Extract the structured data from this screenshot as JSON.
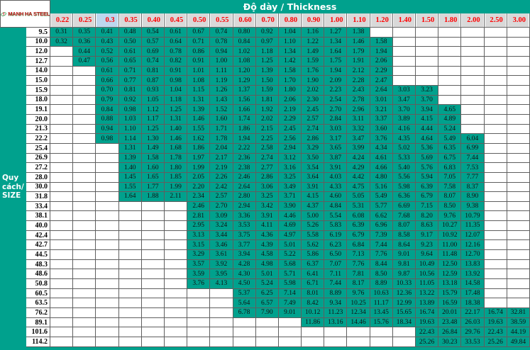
{
  "logo": {
    "text": "MANH HA STEEL"
  },
  "title": "Độ dày / Thickness",
  "size_label": "Quy cách/ SIZE",
  "thickness_headers": [
    "0.22",
    "0.25",
    "0.3",
    "0.35",
    "0.40",
    "0.45",
    "0.50",
    "0.55",
    "0.60",
    "0.70",
    "0.80",
    "0.90",
    "1.00",
    "1.10",
    "1.20",
    "1.40",
    "1.50",
    "1.80",
    "2.00",
    "2.50",
    "3.00"
  ],
  "highlight_header_index": 2,
  "colors": {
    "accent_teal": "#00a18d",
    "header_cell_bg": "#d9d9d9",
    "header_highlight_bg": "#bdd7ee",
    "header_text_red": "#ff0000",
    "logo_green": "#2e9a47",
    "logo_red": "#d3202a"
  },
  "rows": [
    {
      "size": "9.5",
      "values": [
        "0.31",
        "0.35",
        "0.41",
        "0.48",
        "0.54",
        "0.61",
        "0.67",
        "0.74",
        "0.80",
        "0.92",
        "1.04",
        "1.16",
        "1.27",
        "1.38",
        "",
        "",
        "",
        "",
        "",
        "",
        ""
      ]
    },
    {
      "size": "10.0",
      "values": [
        "0.32",
        "0.36",
        "0.43",
        "0.50",
        "0.57",
        "0.64",
        "0.71",
        "0.78",
        "0.84",
        "0.97",
        "1.10",
        "1.22",
        "1.34",
        "1.46",
        "1.58",
        "",
        "",
        "",
        "",
        "",
        ""
      ]
    },
    {
      "size": "12.0",
      "values": [
        "",
        "0.44",
        "0.52",
        "0.61",
        "0.69",
        "0.78",
        "0.86",
        "0.94",
        "1.02",
        "1.18",
        "1.34",
        "1.49",
        "1.64",
        "1.79",
        "1.94",
        "",
        "",
        "",
        "",
        "",
        ""
      ]
    },
    {
      "size": "12.7",
      "values": [
        "",
        "0.47",
        "0.56",
        "0.65",
        "0.74",
        "0.82",
        "0.91",
        "1.00",
        "1.08",
        "1.25",
        "1.42",
        "1.59",
        "1.75",
        "1.91",
        "2.06",
        "",
        "",
        "",
        "",
        "",
        ""
      ]
    },
    {
      "size": "14.0",
      "values": [
        "",
        "",
        "0.61",
        "0.71",
        "0.81",
        "0.91",
        "1.01",
        "1.11",
        "1.20",
        "1.39",
        "1.58",
        "1.76",
        "1.94",
        "2.12",
        "2.29",
        "",
        "",
        "",
        "",
        "",
        ""
      ]
    },
    {
      "size": "15.0",
      "values": [
        "",
        "",
        "0.66",
        "0.77",
        "0.87",
        "0.98",
        "1.08",
        "1.19",
        "1.29",
        "1.50",
        "1.70",
        "1.90",
        "2.09",
        "2.28",
        "2.47",
        "",
        "",
        "",
        "",
        "",
        ""
      ]
    },
    {
      "size": "15.9",
      "values": [
        "",
        "",
        "0.70",
        "0.81",
        "0.93",
        "1.04",
        "1.15",
        "1.26",
        "1.37",
        "1.59",
        "1.80",
        "2.02",
        "2.23",
        "2.43",
        "2.64",
        "3.03",
        "3.23",
        "",
        "",
        "",
        ""
      ]
    },
    {
      "size": "18.0",
      "values": [
        "",
        "",
        "0.79",
        "0.92",
        "1.05",
        "1.18",
        "1.31",
        "1.43",
        "1.56",
        "1.81",
        "2.06",
        "2.30",
        "2.54",
        "2.78",
        "3.01",
        "3.47",
        "3.70",
        "",
        "",
        "",
        ""
      ]
    },
    {
      "size": "19.1",
      "values": [
        "",
        "",
        "0.84",
        "0.98",
        "1.12",
        "1.25",
        "1.39",
        "1.52",
        "1.66",
        "1.92",
        "2.19",
        "2.45",
        "2.70",
        "2.96",
        "3.21",
        "3.70",
        "3.94",
        "4.65",
        "",
        "",
        ""
      ]
    },
    {
      "size": "20.0",
      "values": [
        "",
        "",
        "0.88",
        "1.03",
        "1.17",
        "1.31",
        "1.46",
        "1.60",
        "1.74",
        "2.02",
        "2.29",
        "2.57",
        "2.84",
        "3.11",
        "3.37",
        "3.89",
        "4.15",
        "4.89",
        "",
        "",
        ""
      ]
    },
    {
      "size": "21.3",
      "values": [
        "",
        "",
        "0.94",
        "1.10",
        "1.25",
        "1.40",
        "1.55",
        "1.71",
        "1.86",
        "2.15",
        "2.45",
        "2.74",
        "3.03",
        "3.32",
        "3.60",
        "4.16",
        "4.44",
        "5.24",
        "",
        "",
        ""
      ]
    },
    {
      "size": "22.2",
      "values": [
        "",
        "",
        "0.98",
        "1.14",
        "1.30",
        "1.46",
        "1.62",
        "1.78",
        "1.94",
        "2.25",
        "2.56",
        "2.86",
        "3.17",
        "3.47",
        "3.76",
        "4.35",
        "4.64",
        "5.49",
        "6.04",
        "",
        ""
      ]
    },
    {
      "size": "25.4",
      "values": [
        "",
        "",
        "",
        "1.31",
        "1.49",
        "1.68",
        "1.86",
        "2.04",
        "2.22",
        "2.58",
        "2.94",
        "3.29",
        "3.65",
        "3.99",
        "4.34",
        "5.02",
        "5.36",
        "6.35",
        "6.99",
        "",
        ""
      ]
    },
    {
      "size": "26.9",
      "values": [
        "",
        "",
        "",
        "1.39",
        "1.58",
        "1.78",
        "1.97",
        "2.17",
        "2.36",
        "2.74",
        "3.12",
        "3.50",
        "3.87",
        "4.24",
        "4.61",
        "5.33",
        "5.69",
        "6.75",
        "7.44",
        "",
        ""
      ]
    },
    {
      "size": "27.2",
      "values": [
        "",
        "",
        "",
        "1.40",
        "1.60",
        "1.80",
        "1.99",
        "2.19",
        "2.38",
        "2.77",
        "3.16",
        "3.54",
        "3.91",
        "4.29",
        "4.66",
        "5.40",
        "5.76",
        "6.83",
        "7.53",
        "",
        ""
      ]
    },
    {
      "size": "28.0",
      "values": [
        "",
        "",
        "",
        "1.45",
        "1.65",
        "1.85",
        "2.05",
        "2.26",
        "2.46",
        "2.86",
        "3.25",
        "3.64",
        "4.03",
        "4.42",
        "4.80",
        "5.56",
        "5.94",
        "7.05",
        "7.77",
        "",
        ""
      ]
    },
    {
      "size": "30.0",
      "values": [
        "",
        "",
        "",
        "1.55",
        "1.77",
        "1.99",
        "2.20",
        "2.42",
        "2.64",
        "3.06",
        "3.49",
        "3.91",
        "4.33",
        "4.75",
        "5.16",
        "5.98",
        "6.39",
        "7.58",
        "8.37",
        "",
        ""
      ]
    },
    {
      "size": "31.8",
      "values": [
        "",
        "",
        "",
        "1.64",
        "1.88",
        "2.11",
        "2.34",
        "2.57",
        "2.80",
        "3.25",
        "3.71",
        "4.15",
        "4.60",
        "5.05",
        "5.49",
        "6.36",
        "6.79",
        "8.07",
        "8.90",
        "",
        ""
      ]
    },
    {
      "size": "33.4",
      "values": [
        "",
        "",
        "",
        "",
        "",
        "",
        "2.46",
        "2.70",
        "2.94",
        "3.42",
        "3.90",
        "4.37",
        "4.84",
        "5.31",
        "5.77",
        "6.69",
        "7.15",
        "8.50",
        "9.38",
        "",
        ""
      ]
    },
    {
      "size": "38.1",
      "values": [
        "",
        "",
        "",
        "",
        "",
        "",
        "2.81",
        "3.09",
        "3.36",
        "3.91",
        "4.46",
        "5.00",
        "5.54",
        "6.08",
        "6.62",
        "7.68",
        "8.20",
        "9.76",
        "10.79",
        "",
        ""
      ]
    },
    {
      "size": "40.0",
      "values": [
        "",
        "",
        "",
        "",
        "",
        "",
        "2.95",
        "3.24",
        "3.53",
        "4.11",
        "4.69",
        "5.26",
        "5.83",
        "6.39",
        "6.96",
        "8.07",
        "8.63",
        "10.27",
        "11.35",
        "",
        ""
      ]
    },
    {
      "size": "42.4",
      "values": [
        "",
        "",
        "",
        "",
        "",
        "",
        "3.13",
        "3.44",
        "3.75",
        "4.36",
        "4.97",
        "5.58",
        "6.19",
        "6.79",
        "7.39",
        "8.58",
        "9.17",
        "10.92",
        "12.07",
        "",
        ""
      ]
    },
    {
      "size": "42.7",
      "values": [
        "",
        "",
        "",
        "",
        "",
        "",
        "3.15",
        "3.46",
        "3.77",
        "4.39",
        "5.01",
        "5.62",
        "6.23",
        "6.84",
        "7.44",
        "8.64",
        "9.23",
        "11.00",
        "12.16",
        "",
        ""
      ]
    },
    {
      "size": "44.5",
      "values": [
        "",
        "",
        "",
        "",
        "",
        "",
        "3.29",
        "3.61",
        "3.94",
        "4.58",
        "5.22",
        "5.86",
        "6.50",
        "7.13",
        "7.76",
        "9.01",
        "9.64",
        "11.48",
        "12.70",
        "",
        ""
      ]
    },
    {
      "size": "48.3",
      "values": [
        "",
        "",
        "",
        "",
        "",
        "",
        "3.57",
        "3.92",
        "4.28",
        "4.98",
        "5.68",
        "6.37",
        "7.07",
        "7.76",
        "8.44",
        "9.81",
        "10.49",
        "12.50",
        "13.83",
        "",
        ""
      ]
    },
    {
      "size": "48.6",
      "values": [
        "",
        "",
        "",
        "",
        "",
        "",
        "3.59",
        "3.95",
        "4.30",
        "5.01",
        "5.71",
        "6.41",
        "7.11",
        "7.81",
        "8.50",
        "9.87",
        "10.56",
        "12.59",
        "13.92",
        "",
        ""
      ]
    },
    {
      "size": "50.8",
      "values": [
        "",
        "",
        "",
        "",
        "",
        "",
        "3.76",
        "4.13",
        "4.50",
        "5.24",
        "5.98",
        "6.71",
        "7.44",
        "8.17",
        "8.89",
        "10.33",
        "11.05",
        "13.18",
        "14.58",
        "",
        ""
      ]
    },
    {
      "size": "60.5",
      "values": [
        "",
        "",
        "",
        "",
        "",
        "",
        "",
        "",
        "5.37",
        "6.25",
        "7.14",
        "8.01",
        "8.89",
        "9.76",
        "10.63",
        "12.36",
        "13.22",
        "15.79",
        "17.48",
        "",
        ""
      ]
    },
    {
      "size": "63.5",
      "values": [
        "",
        "",
        "",
        "",
        "",
        "",
        "",
        "",
        "5.64",
        "6.57",
        "7.49",
        "8.42",
        "9.34",
        "10.25",
        "11.17",
        "12.99",
        "13.89",
        "16.59",
        "18.38",
        "",
        ""
      ]
    },
    {
      "size": "76.2",
      "values": [
        "",
        "",
        "",
        "",
        "",
        "",
        "",
        "",
        "6.78",
        "7.90",
        "9.01",
        "10.12",
        "11.23",
        "12.34",
        "13.45",
        "15.65",
        "16.74",
        "20.01",
        "22.17",
        "16.74",
        "32.81"
      ]
    },
    {
      "size": "89.1",
      "values": [
        "",
        "",
        "",
        "",
        "",
        "",
        "",
        "",
        "",
        "",
        "",
        "11.86",
        "13.16",
        "14.46",
        "15.76",
        "18.34",
        "19.63",
        "23.48",
        "26.03",
        "19.63",
        "38.59"
      ]
    },
    {
      "size": "101.6",
      "values": [
        "",
        "",
        "",
        "",
        "",
        "",
        "",
        "",
        "",
        "",
        "",
        "",
        "",
        "",
        "",
        "",
        "22.43",
        "26.84",
        "29.76",
        "22.43",
        "44.19"
      ]
    },
    {
      "size": "114.2",
      "values": [
        "",
        "",
        "",
        "",
        "",
        "",
        "",
        "",
        "",
        "",
        "",
        "",
        "",
        "",
        "",
        "",
        "25.26",
        "30.23",
        "33.53",
        "25.26",
        "49.84"
      ]
    }
  ]
}
